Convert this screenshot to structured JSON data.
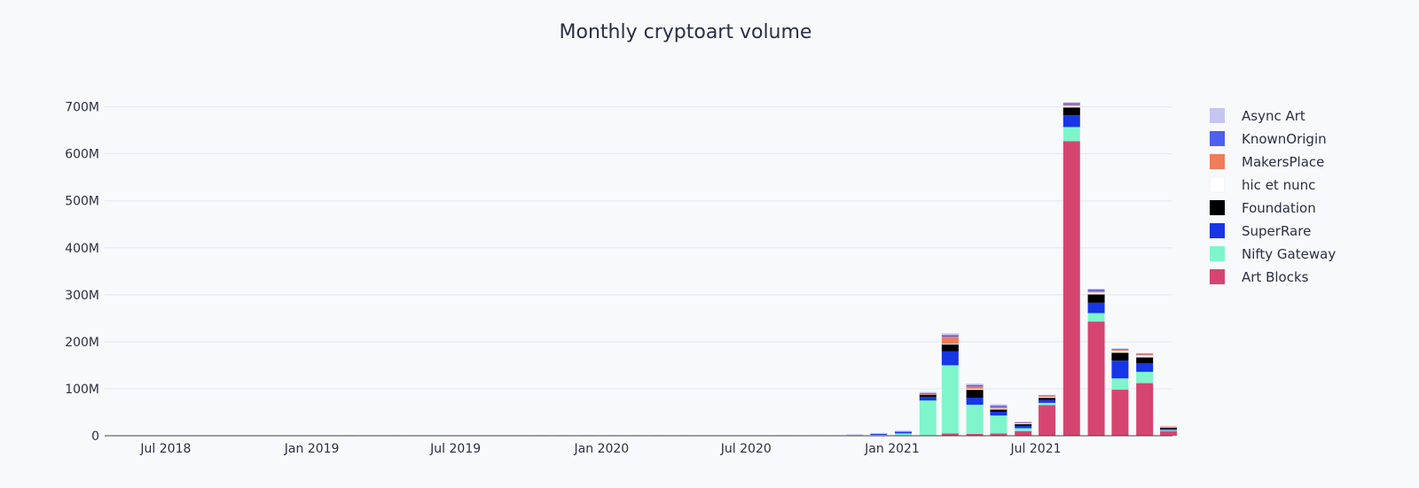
{
  "chart_data": {
    "type": "bar",
    "stacked": true,
    "title": "Monthly cryptoart volume",
    "xlabel": "",
    "ylabel": "",
    "ylim": [
      0,
      720000000
    ],
    "xlim": [
      "2018-04-15",
      "2021-12-20"
    ],
    "grid": true,
    "legend_position": "top-right",
    "y_ticks": [
      {
        "value": 0,
        "label": "0"
      },
      {
        "value": 100000000,
        "label": "100M"
      },
      {
        "value": 200000000,
        "label": "200M"
      },
      {
        "value": 300000000,
        "label": "300M"
      },
      {
        "value": 400000000,
        "label": "400M"
      },
      {
        "value": 500000000,
        "label": "500M"
      },
      {
        "value": 600000000,
        "label": "600M"
      },
      {
        "value": 700000000,
        "label": "700M"
      }
    ],
    "x_ticks": [
      {
        "date": "2018-07-01",
        "label": "Jul 2018"
      },
      {
        "date": "2019-01-01",
        "label": "Jan 2019"
      },
      {
        "date": "2019-07-01",
        "label": "Jul 2019"
      },
      {
        "date": "2020-01-01",
        "label": "Jan 2020"
      },
      {
        "date": "2020-07-01",
        "label": "Jul 2020"
      },
      {
        "date": "2021-01-01",
        "label": "Jan 2021"
      },
      {
        "date": "2021-07-01",
        "label": "Jul 2021"
      }
    ],
    "x": [
      "2018-05",
      "2018-06",
      "2018-07",
      "2018-08",
      "2018-09",
      "2018-10",
      "2018-11",
      "2018-12",
      "2019-01",
      "2019-02",
      "2019-03",
      "2019-04",
      "2019-05",
      "2019-06",
      "2019-07",
      "2019-08",
      "2019-09",
      "2019-10",
      "2019-11",
      "2019-12",
      "2020-01",
      "2020-02",
      "2020-03",
      "2020-04",
      "2020-05",
      "2020-06",
      "2020-07",
      "2020-08",
      "2020-09",
      "2020-10",
      "2020-11",
      "2020-12",
      "2021-01",
      "2021-02",
      "2021-03",
      "2021-04",
      "2021-05",
      "2021-06",
      "2021-07",
      "2021-08",
      "2021-09",
      "2021-10",
      "2021-11",
      "2021-12"
    ],
    "series": [
      {
        "name": "Art Blocks",
        "color": "#d6456f",
        "values": [
          0,
          0,
          0,
          0,
          0,
          0,
          0,
          0,
          0,
          0,
          0,
          0,
          0,
          0,
          0,
          0,
          0,
          0,
          0,
          0,
          0,
          0,
          0,
          0,
          0,
          0,
          0,
          0,
          0,
          0,
          0,
          0,
          0,
          0,
          5000000,
          4000000,
          5000000,
          10000000,
          65000000,
          627000000,
          243000000,
          98000000,
          112000000,
          10000000
        ]
      },
      {
        "name": "Nifty Gateway",
        "color": "#7ff5cc",
        "values": [
          0,
          0,
          0,
          0,
          0,
          0,
          0,
          0,
          0,
          0,
          0,
          0,
          0,
          0,
          0,
          0,
          0,
          0,
          0,
          0,
          0,
          0,
          0,
          0,
          0,
          0,
          0,
          0,
          0,
          0,
          0,
          2000000,
          5000000,
          75000000,
          145000000,
          62000000,
          38000000,
          6000000,
          5000000,
          30000000,
          18000000,
          24000000,
          24000000,
          2000000
        ]
      },
      {
        "name": "SuperRare",
        "color": "#1736e6",
        "values": [
          0,
          0,
          0,
          0,
          0,
          0,
          0,
          0,
          0,
          1000000,
          0,
          1000000,
          0,
          0,
          0,
          0,
          0,
          1000000,
          1000000,
          1000000,
          1000000,
          1000000,
          1000000,
          1000000,
          0,
          0,
          0,
          1000000,
          0,
          0,
          1000000,
          2000000,
          3000000,
          8000000,
          30000000,
          15000000,
          8000000,
          5000000,
          6000000,
          25000000,
          22000000,
          38000000,
          18000000,
          3000000
        ]
      },
      {
        "name": "Foundation",
        "color": "#000000",
        "values": [
          0,
          0,
          0,
          0,
          0,
          0,
          0,
          0,
          0,
          0,
          0,
          0,
          0,
          0,
          0,
          0,
          0,
          0,
          0,
          0,
          0,
          0,
          0,
          0,
          0,
          0,
          0,
          0,
          0,
          0,
          0,
          0,
          0,
          4000000,
          15000000,
          17000000,
          5000000,
          4000000,
          5000000,
          17000000,
          18000000,
          17000000,
          13000000,
          3000000
        ]
      },
      {
        "name": "hic et nunc",
        "color": "#ffffff",
        "values": [
          0,
          0,
          0,
          0,
          0,
          0,
          0,
          0,
          0,
          0,
          0,
          0,
          0,
          0,
          0,
          0,
          0,
          0,
          0,
          0,
          0,
          0,
          0,
          0,
          0,
          0,
          0,
          0,
          0,
          0,
          0,
          0,
          0,
          0,
          1000000,
          2000000,
          2000000,
          2000000,
          2000000,
          3000000,
          4000000,
          4000000,
          4000000,
          1000000
        ]
      },
      {
        "name": "MakersPlace",
        "color": "#ee7d5a",
        "values": [
          0,
          0,
          0,
          0,
          0,
          0,
          0,
          0,
          0,
          0,
          0,
          0,
          0,
          0,
          0,
          0,
          0,
          0,
          0,
          0,
          0,
          0,
          0,
          0,
          0,
          0,
          0,
          0,
          0,
          0,
          0,
          0,
          0,
          2000000,
          15000000,
          5000000,
          3000000,
          1000000,
          2000000,
          3000000,
          3000000,
          3000000,
          3000000,
          1000000
        ]
      },
      {
        "name": "KnownOrigin",
        "color": "#4f60ee",
        "values": [
          0,
          0,
          0,
          0,
          0,
          0,
          0,
          0,
          0,
          0,
          0,
          0,
          0,
          0,
          0,
          0,
          0,
          0,
          0,
          0,
          0,
          0,
          0,
          0,
          0,
          0,
          0,
          0,
          0,
          0,
          0,
          0,
          1000000,
          2000000,
          3000000,
          3000000,
          3000000,
          1000000,
          1000000,
          3000000,
          3000000,
          1000000,
          1000000,
          0
        ]
      },
      {
        "name": "Async Art",
        "color": "#c6c5f2",
        "values": [
          0,
          0,
          0,
          0,
          0,
          0,
          0,
          0,
          0,
          0,
          0,
          0,
          0,
          0,
          0,
          0,
          0,
          0,
          0,
          0,
          0,
          0,
          0,
          0,
          0,
          0,
          0,
          0,
          1000000,
          1000000,
          2000000,
          2000000,
          2000000,
          2000000,
          4000000,
          3000000,
          3000000,
          1000000,
          1000000,
          2000000,
          2000000,
          1000000,
          1000000,
          0
        ]
      }
    ]
  },
  "legend": {
    "items": [
      {
        "label": "Async Art",
        "color": "#c6c5f2"
      },
      {
        "label": "KnownOrigin",
        "color": "#4f60ee"
      },
      {
        "label": "MakersPlace",
        "color": "#ee7d5a"
      },
      {
        "label": "hic et nunc",
        "color": "#ffffff"
      },
      {
        "label": "Foundation",
        "color": "#000000"
      },
      {
        "label": "SuperRare",
        "color": "#1736e6"
      },
      {
        "label": "Nifty Gateway",
        "color": "#7ff5cc"
      },
      {
        "label": "Art Blocks",
        "color": "#d6456f"
      }
    ]
  }
}
